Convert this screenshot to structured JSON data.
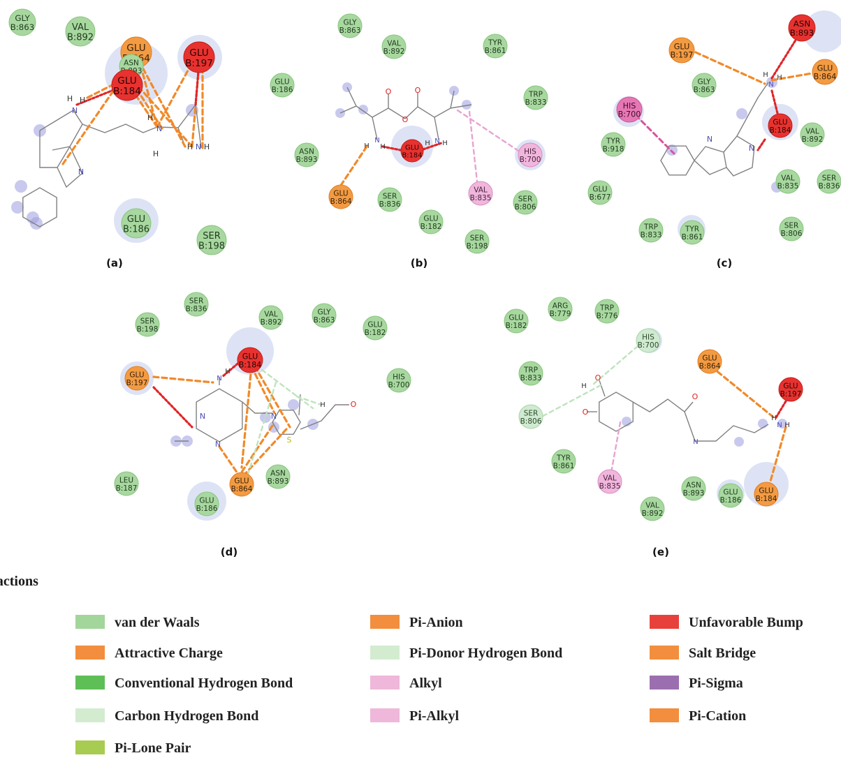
{
  "colors": {
    "vdw": "#a8d8a0",
    "charge": "#f39b43",
    "bump": "#e8322f",
    "pialkyl": "#f0b6dc",
    "his": "#e777b4",
    "cbond": "#cfead0",
    "bondline": "#808080",
    "nitrogen": "#4b4bb8",
    "oxygen": "#e02020"
  },
  "panels": [
    {
      "label": "(a)",
      "residues": [
        {
          "name": "GLY",
          "num": "B:863",
          "type": "vdw"
        },
        {
          "name": "VAL",
          "num": "B:892",
          "type": "vdw"
        },
        {
          "name": "GLU",
          "num": "B:864",
          "type": "charge"
        },
        {
          "name": "ASN",
          "num": "B:893",
          "type": "vdw"
        },
        {
          "name": "GLU",
          "num": "B:184",
          "type": "bump"
        },
        {
          "name": "GLU",
          "num": "B:197",
          "type": "bump"
        },
        {
          "name": "GLU",
          "num": "B:186",
          "type": "vdw"
        },
        {
          "name": "SER",
          "num": "B:198",
          "type": "vdw"
        }
      ],
      "atoms": [
        "H",
        "N",
        "H",
        "N",
        "H",
        "N",
        "H",
        "H",
        "N",
        "H"
      ]
    },
    {
      "label": "(b)",
      "residues": [
        {
          "name": "GLY",
          "num": "B:863",
          "type": "vdw"
        },
        {
          "name": "VAL",
          "num": "B:892",
          "type": "vdw"
        },
        {
          "name": "TYR",
          "num": "B:861",
          "type": "vdw"
        },
        {
          "name": "GLU",
          "num": "B:186",
          "type": "vdw"
        },
        {
          "name": "TRP",
          "num": "B:833",
          "type": "vdw"
        },
        {
          "name": "ASN",
          "num": "B:893",
          "type": "vdw"
        },
        {
          "name": "GLU",
          "num": "B:184",
          "type": "bump"
        },
        {
          "name": "HIS",
          "num": "B:700",
          "type": "pialkyl"
        },
        {
          "name": "GLU",
          "num": "B:864",
          "type": "charge"
        },
        {
          "name": "SER",
          "num": "B:836",
          "type": "vdw"
        },
        {
          "name": "VAL",
          "num": "B:835",
          "type": "pialkyl"
        },
        {
          "name": "SER",
          "num": "B:806",
          "type": "vdw"
        },
        {
          "name": "GLU",
          "num": "B:182",
          "type": "vdw"
        },
        {
          "name": "SER",
          "num": "B:198",
          "type": "vdw"
        }
      ],
      "atoms": [
        "O",
        "O",
        "O",
        "H",
        "N",
        "H",
        "H",
        "N",
        "H"
      ]
    },
    {
      "label": "(c)",
      "residues": [
        {
          "name": "ASN",
          "num": "B:893",
          "type": "bump"
        },
        {
          "name": "GLU",
          "num": "B:197",
          "type": "charge"
        },
        {
          "name": "GLU",
          "num": "B:864",
          "type": "charge"
        },
        {
          "name": "GLY",
          "num": "B:863",
          "type": "vdw"
        },
        {
          "name": "HIS",
          "num": "B:700",
          "type": "his"
        },
        {
          "name": "GLU",
          "num": "B:184",
          "type": "bump"
        },
        {
          "name": "VAL",
          "num": "B:892",
          "type": "vdw"
        },
        {
          "name": "TYR",
          "num": "B:918",
          "type": "vdw"
        },
        {
          "name": "GLU",
          "num": "B:677",
          "type": "vdw"
        },
        {
          "name": "VAL",
          "num": "B:835",
          "type": "vdw"
        },
        {
          "name": "SER",
          "num": "B:836",
          "type": "vdw"
        },
        {
          "name": "TRP",
          "num": "B:833",
          "type": "vdw"
        },
        {
          "name": "TYR",
          "num": "B:861",
          "type": "vdw"
        },
        {
          "name": "SER",
          "num": "B:806",
          "type": "vdw"
        }
      ],
      "atoms": [
        "H",
        "N",
        "H",
        "N",
        "N"
      ]
    },
    {
      "label": "(d)",
      "residues": [
        {
          "name": "SER",
          "num": "B:836",
          "type": "vdw"
        },
        {
          "name": "SER",
          "num": "B:198",
          "type": "vdw"
        },
        {
          "name": "VAL",
          "num": "B:892",
          "type": "vdw"
        },
        {
          "name": "GLY",
          "num": "B:863",
          "type": "vdw"
        },
        {
          "name": "GLU",
          "num": "B:182",
          "type": "vdw"
        },
        {
          "name": "GLU",
          "num": "B:184",
          "type": "bump"
        },
        {
          "name": "GLU",
          "num": "B:197",
          "type": "charge"
        },
        {
          "name": "HIS",
          "num": "B:700",
          "type": "vdw"
        },
        {
          "name": "LEU",
          "num": "B:187",
          "type": "vdw"
        },
        {
          "name": "ASN",
          "num": "B:893",
          "type": "vdw"
        },
        {
          "name": "GLU",
          "num": "B:864",
          "type": "charge"
        },
        {
          "name": "GLU",
          "num": "B:186",
          "type": "vdw"
        }
      ],
      "atoms": [
        "H",
        "N",
        "N",
        "N",
        "N",
        "H",
        "O",
        "S"
      ]
    },
    {
      "label": "(e)",
      "residues": [
        {
          "name": "ARG",
          "num": "B:779",
          "type": "vdw"
        },
        {
          "name": "TRP",
          "num": "B:776",
          "type": "vdw"
        },
        {
          "name": "GLU",
          "num": "B:182",
          "type": "vdw"
        },
        {
          "name": "HIS",
          "num": "B:700",
          "type": "cbond"
        },
        {
          "name": "GLU",
          "num": "B:864",
          "type": "charge"
        },
        {
          "name": "TRP",
          "num": "B:833",
          "type": "vdw"
        },
        {
          "name": "GLU",
          "num": "B:197",
          "type": "bump"
        },
        {
          "name": "SER",
          "num": "B:806",
          "type": "cbond"
        },
        {
          "name": "TYR",
          "num": "B:861",
          "type": "vdw"
        },
        {
          "name": "VAL",
          "num": "B:835",
          "type": "pialkyl"
        },
        {
          "name": "ASN",
          "num": "B:893",
          "type": "vdw"
        },
        {
          "name": "GLU",
          "num": "B:186",
          "type": "vdw"
        },
        {
          "name": "GLU",
          "num": "B:184",
          "type": "charge"
        },
        {
          "name": "VAL",
          "num": "B:892",
          "type": "vdw"
        }
      ],
      "atoms": [
        "H",
        "O",
        "O",
        "O",
        "N",
        "N",
        "H",
        "H"
      ]
    }
  ],
  "legend": {
    "title": "ractions",
    "items": [
      {
        "label": "van der Waals",
        "color": "#a2d69a"
      },
      {
        "label": "Attractive Charge",
        "color": "#f28e3d"
      },
      {
        "label": "Conventional Hydrogen Bond",
        "color": "#5fbf57"
      },
      {
        "label": "Carbon Hydrogen Bond",
        "color": "#d3ecd0"
      },
      {
        "label": "Pi-Lone Pair",
        "color": "#a8cc52"
      },
      {
        "label": "Pi-Anion",
        "color": "#f28e3d"
      },
      {
        "label": "Pi-Donor Hydrogen Bond",
        "color": "#d3ecd0"
      },
      {
        "label": "Alkyl",
        "color": "#efb8da"
      },
      {
        "label": "Pi-Alkyl",
        "color": "#efb8da"
      },
      {
        "label": "Unfavorable Bump",
        "color": "#e8413c"
      },
      {
        "label": "Salt Bridge",
        "color": "#f28e3d"
      },
      {
        "label": "Pi-Sigma",
        "color": "#9b6faf"
      },
      {
        "label": "Pi-Cation",
        "color": "#f28e3d"
      }
    ]
  }
}
